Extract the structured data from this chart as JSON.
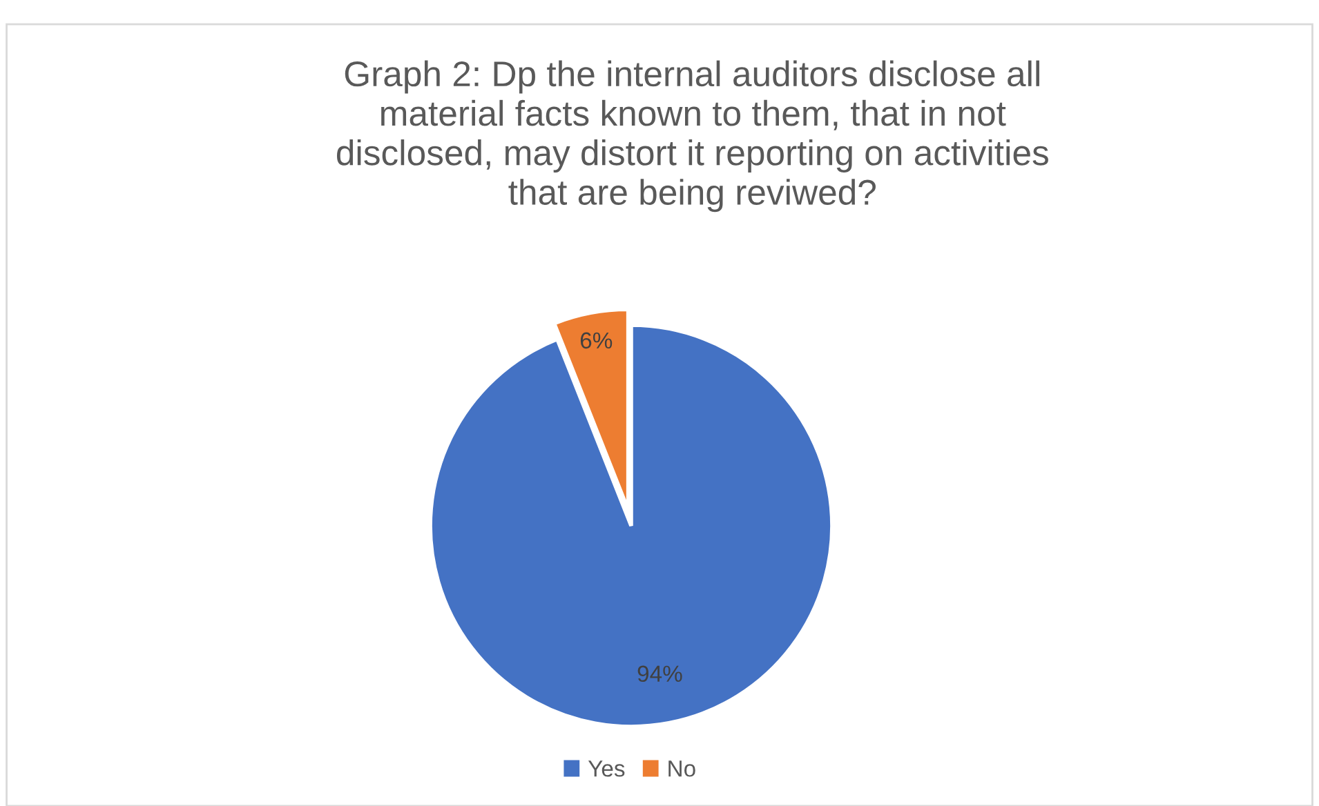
{
  "chart_data": {
    "type": "pie",
    "title": "Graph 2: Dp the internal auditors disclose all\nmaterial facts known to them, that in not\ndisclosed, may distort it reporting on activities\nthat are being reviwed?",
    "categories": [
      "Yes",
      "No"
    ],
    "values": [
      94,
      6
    ],
    "colors": [
      "#4472c4",
      "#ed7d31"
    ],
    "value_labels": [
      "94%",
      "6%"
    ],
    "legend": "bottom"
  }
}
